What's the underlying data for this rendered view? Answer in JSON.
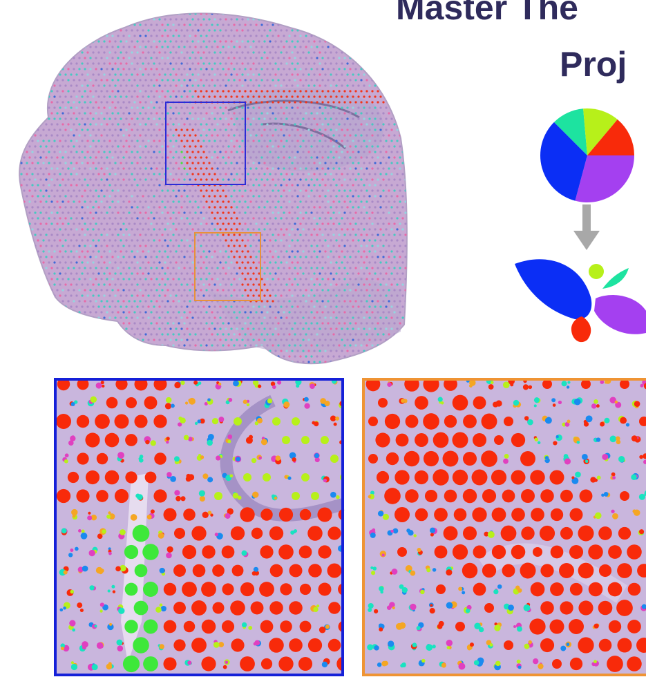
{
  "title": {
    "line1": "Master The",
    "line2": "Proj"
  }
}
